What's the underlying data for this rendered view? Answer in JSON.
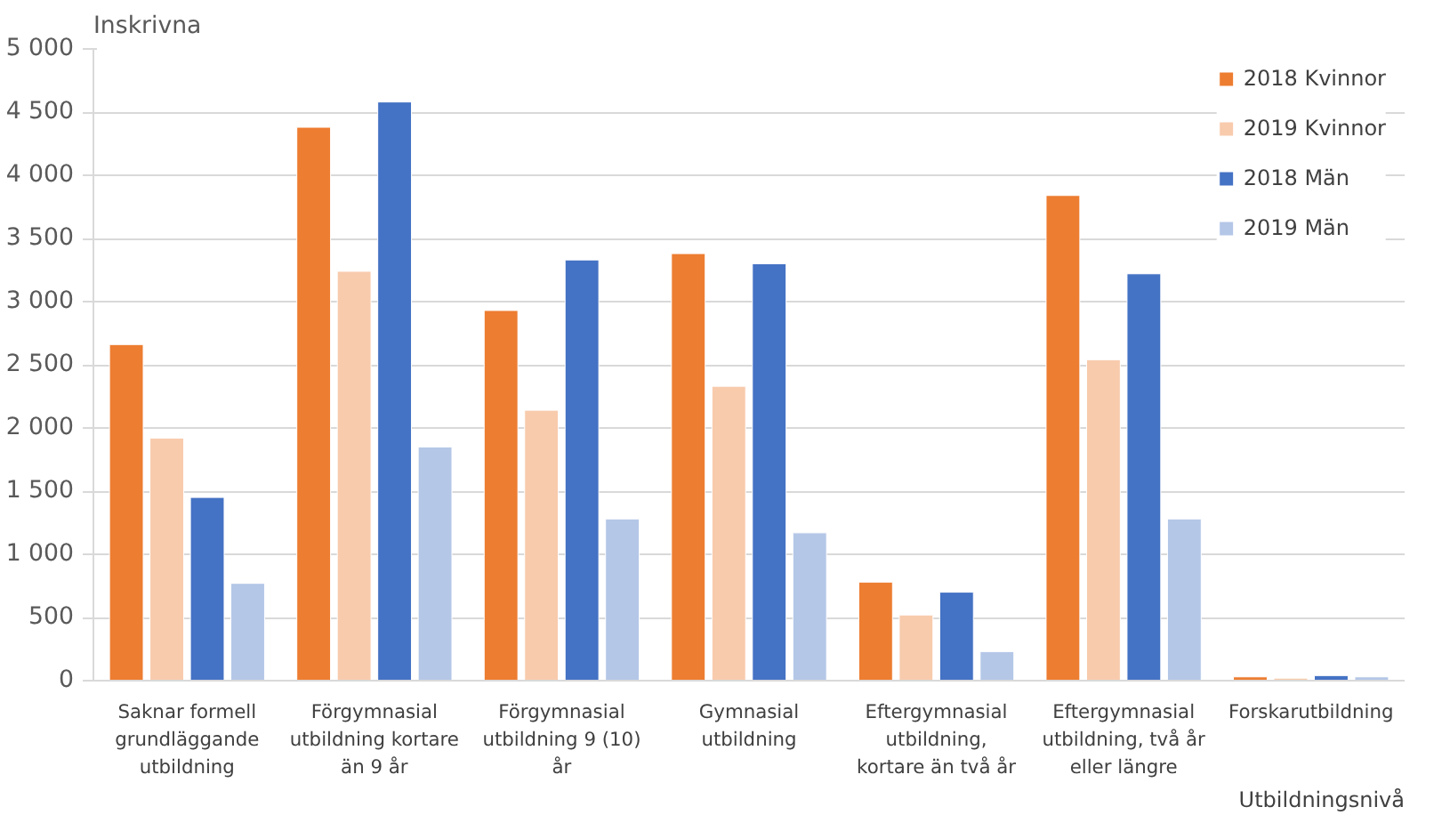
{
  "chart_data": {
    "type": "bar",
    "ylabel": "Inskrivna",
    "xlabel": "Utbildningsnivå",
    "categories": [
      "Saknar formell grundläggande utbildning",
      "Förgymnasial utbildning kortare än 9 år",
      "Förgymnasial utbildning 9 (10) år",
      "Gymnasial utbildning",
      "Eftergymnasial utbildning, kortare än två år",
      "Eftergymnasial utbildning, två år eller längre",
      "Forskarutbildning"
    ],
    "series": [
      {
        "name": "2018 Kvinnor",
        "color": "#ed7d31",
        "values": [
          2660,
          4380,
          2930,
          3380,
          780,
          3840,
          30
        ]
      },
      {
        "name": "2019 Kvinnor",
        "color": "#f8cbad",
        "values": [
          1920,
          3240,
          2140,
          2330,
          520,
          2540,
          20
        ]
      },
      {
        "name": "2018 Män",
        "color": "#4472c4",
        "values": [
          1450,
          4580,
          3330,
          3300,
          700,
          3220,
          40
        ]
      },
      {
        "name": "2019 Män",
        "color": "#b4c7e7",
        "values": [
          770,
          1850,
          1280,
          1170,
          230,
          1280,
          30
        ]
      }
    ],
    "ylim": [
      0,
      5000
    ],
    "yticks": [
      0,
      500,
      {
        "value": 1000,
        "label": "1 000"
      },
      {
        "value": 1500,
        "label": "1 500"
      },
      {
        "value": 2000,
        "label": "2 000"
      },
      {
        "value": 2500,
        "label": "2 500"
      },
      {
        "value": 3000,
        "label": "3 000"
      },
      {
        "value": 3500,
        "label": "3 500"
      },
      {
        "value": 4000,
        "label": "4 000"
      },
      {
        "value": 4500,
        "label": "4 500"
      },
      {
        "value": 5000,
        "label": "5 000"
      }
    ],
    "grid": "y",
    "legend": "top right"
  }
}
